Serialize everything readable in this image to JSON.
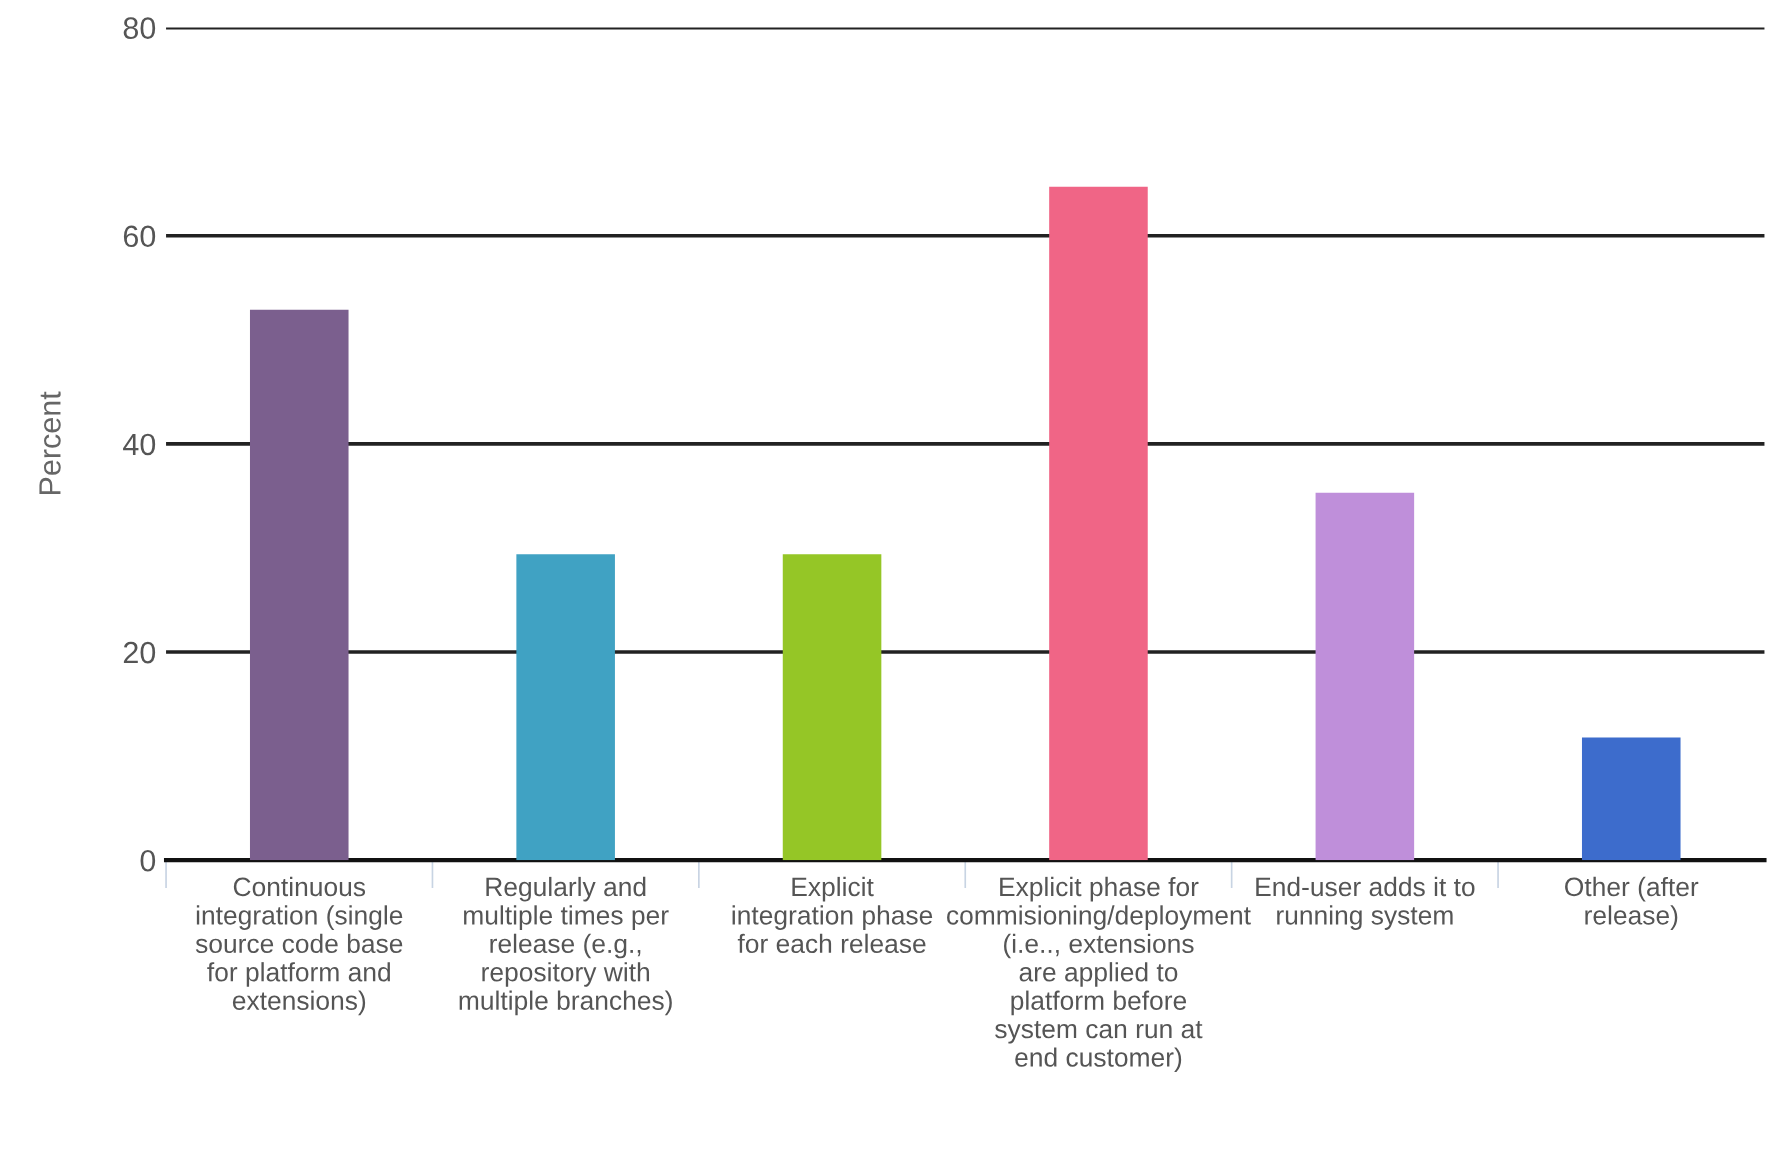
{
  "chart_data": {
    "type": "bar",
    "ylabel": "Percent",
    "categories": [
      "Continuous integration (single source code base for platform and extensions)",
      "Regularly and multiple times per release (e.g., repository with multiple branches)",
      "Explicit integration phase for each release",
      "Explicit phase for commisioning/deployment (i.e.., extensions are applied to platform before system can run at end customer)",
      "End-user adds it to running system",
      "Other (after release)"
    ],
    "values": [
      52.9,
      29.4,
      29.4,
      64.7,
      35.3,
      11.8
    ],
    "colors": [
      "#7b5f8e",
      "#40a2c3",
      "#95c626",
      "#f06586",
      "#bf8fda",
      "#3d6ccc"
    ],
    "ylim": [
      0,
      80
    ],
    "yticks": [
      0,
      20,
      40,
      60,
      80
    ],
    "grid": "y"
  }
}
